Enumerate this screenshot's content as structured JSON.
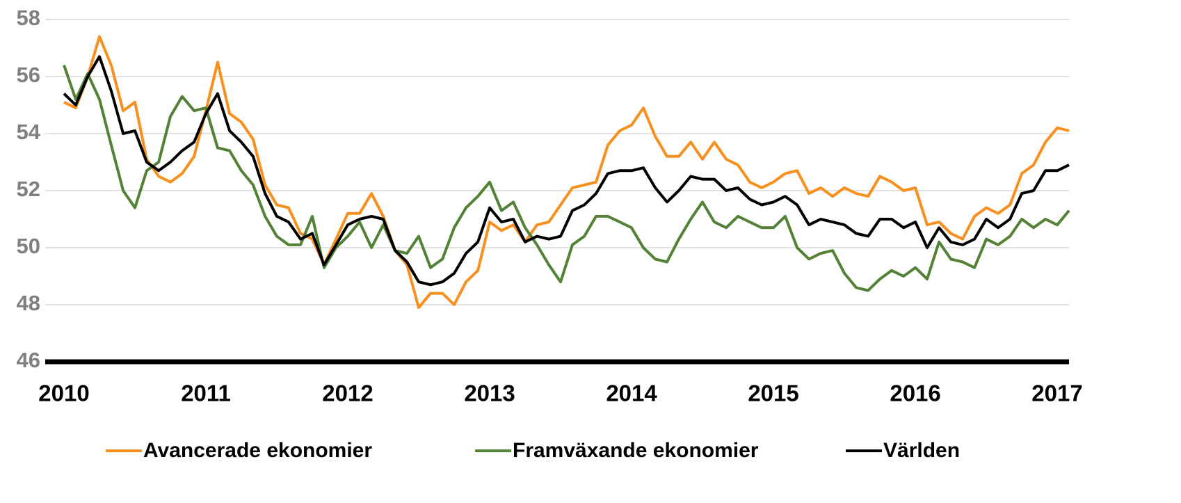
{
  "chart_data": {
    "type": "line",
    "x": [
      2010,
      2010.083,
      2010.167,
      2010.25,
      2010.333,
      2010.417,
      2010.5,
      2010.583,
      2010.667,
      2010.75,
      2010.833,
      2010.917,
      2011,
      2011.083,
      2011.167,
      2011.25,
      2011.333,
      2011.417,
      2011.5,
      2011.583,
      2011.667,
      2011.75,
      2011.833,
      2011.917,
      2012,
      2012.083,
      2012.167,
      2012.25,
      2012.333,
      2012.417,
      2012.5,
      2012.583,
      2012.667,
      2012.75,
      2012.833,
      2012.917,
      2013,
      2013.083,
      2013.167,
      2013.25,
      2013.333,
      2013.417,
      2013.5,
      2013.583,
      2013.667,
      2013.75,
      2013.833,
      2013.917,
      2014,
      2014.083,
      2014.167,
      2014.25,
      2014.333,
      2014.417,
      2014.5,
      2014.583,
      2014.667,
      2014.75,
      2014.833,
      2014.917,
      2015,
      2015.083,
      2015.167,
      2015.25,
      2015.333,
      2015.417,
      2015.5,
      2015.583,
      2015.667,
      2015.75,
      2015.833,
      2015.917,
      2016,
      2016.083,
      2016.167,
      2016.25,
      2016.333,
      2016.417,
      2016.5,
      2016.583,
      2016.667,
      2016.75,
      2016.833,
      2016.917,
      2017,
      2017.083
    ],
    "series": [
      {
        "name": "Avancerade ekonomier",
        "color": "#f7901e",
        "values": [
          55.1,
          54.9,
          56.0,
          57.4,
          56.4,
          54.8,
          55.1,
          53.1,
          52.5,
          52.3,
          52.6,
          53.2,
          54.8,
          56.5,
          54.7,
          54.4,
          53.8,
          52.2,
          51.5,
          51.4,
          50.5,
          50.3,
          49.4,
          50.3,
          51.2,
          51.2,
          51.9,
          51.1,
          49.9,
          49.4,
          47.9,
          48.4,
          48.4,
          48.0,
          48.8,
          49.2,
          50.9,
          50.6,
          50.8,
          50.2,
          50.8,
          50.9,
          51.5,
          52.1,
          52.2,
          52.3,
          53.6,
          54.1,
          54.3,
          54.9,
          53.9,
          53.2,
          53.2,
          53.7,
          53.1,
          53.7,
          53.1,
          52.9,
          52.3,
          52.1,
          52.3,
          52.6,
          52.7,
          51.9,
          52.1,
          51.8,
          52.1,
          51.9,
          51.8,
          52.5,
          52.3,
          52.0,
          52.1,
          50.8,
          50.9,
          50.5,
          50.3,
          51.1,
          51.4,
          51.2,
          51.5,
          52.6,
          52.9,
          53.7,
          54.2,
          54.1
        ]
      },
      {
        "name": "Framväxande ekonomier",
        "color": "#538135",
        "values": [
          56.4,
          55.2,
          56.1,
          55.2,
          53.6,
          52.0,
          51.4,
          52.7,
          53.0,
          54.6,
          55.3,
          54.8,
          54.9,
          53.5,
          53.4,
          52.7,
          52.2,
          51.1,
          50.4,
          50.1,
          50.1,
          51.1,
          49.3,
          50.0,
          50.4,
          50.9,
          50.0,
          50.8,
          49.9,
          49.8,
          50.4,
          49.3,
          49.6,
          50.7,
          51.4,
          51.8,
          52.3,
          51.3,
          51.6,
          50.7,
          50.1,
          49.4,
          48.8,
          50.1,
          50.4,
          51.1,
          51.1,
          50.9,
          50.7,
          50.0,
          49.6,
          49.5,
          50.3,
          51.0,
          51.6,
          50.9,
          50.7,
          51.1,
          50.9,
          50.7,
          50.7,
          51.1,
          50.0,
          49.6,
          49.8,
          49.9,
          49.1,
          48.6,
          48.5,
          48.9,
          49.2,
          49.0,
          49.3,
          48.9,
          50.2,
          49.6,
          49.5,
          49.3,
          50.3,
          50.1,
          50.4,
          51.0,
          50.7,
          51.0,
          50.8,
          51.3
        ]
      },
      {
        "name": "Världen",
        "color": "#000000",
        "values": [
          55.4,
          55.0,
          56.0,
          56.7,
          55.5,
          54.0,
          54.1,
          53.0,
          52.7,
          53.0,
          53.4,
          53.7,
          54.7,
          55.4,
          54.1,
          53.7,
          53.2,
          51.9,
          51.1,
          50.9,
          50.3,
          50.5,
          49.4,
          50.1,
          50.8,
          51.0,
          51.1,
          51.0,
          49.9,
          49.5,
          48.8,
          48.7,
          48.8,
          49.1,
          49.8,
          50.2,
          51.4,
          50.9,
          51.0,
          50.2,
          50.4,
          50.3,
          50.4,
          51.3,
          51.5,
          51.9,
          52.6,
          52.7,
          52.7,
          52.8,
          52.1,
          51.6,
          52.0,
          52.5,
          52.4,
          52.4,
          52.0,
          52.1,
          51.7,
          51.5,
          51.6,
          51.8,
          51.5,
          50.8,
          51.0,
          50.9,
          50.8,
          50.5,
          50.4,
          51.0,
          51.0,
          50.7,
          50.9,
          50.0,
          50.7,
          50.2,
          50.1,
          50.3,
          51.0,
          50.7,
          51.0,
          51.9,
          52.0,
          52.7,
          52.7,
          52.9
        ]
      }
    ],
    "xlim": [
      2010,
      2017.083
    ],
    "xticks": [
      2010,
      2011,
      2012,
      2013,
      2014,
      2015,
      2016,
      2017
    ],
    "ylim": [
      46,
      58
    ],
    "yticks": [
      46,
      48,
      50,
      52,
      54,
      56,
      58
    ],
    "grid": true,
    "legend": "bottom"
  }
}
